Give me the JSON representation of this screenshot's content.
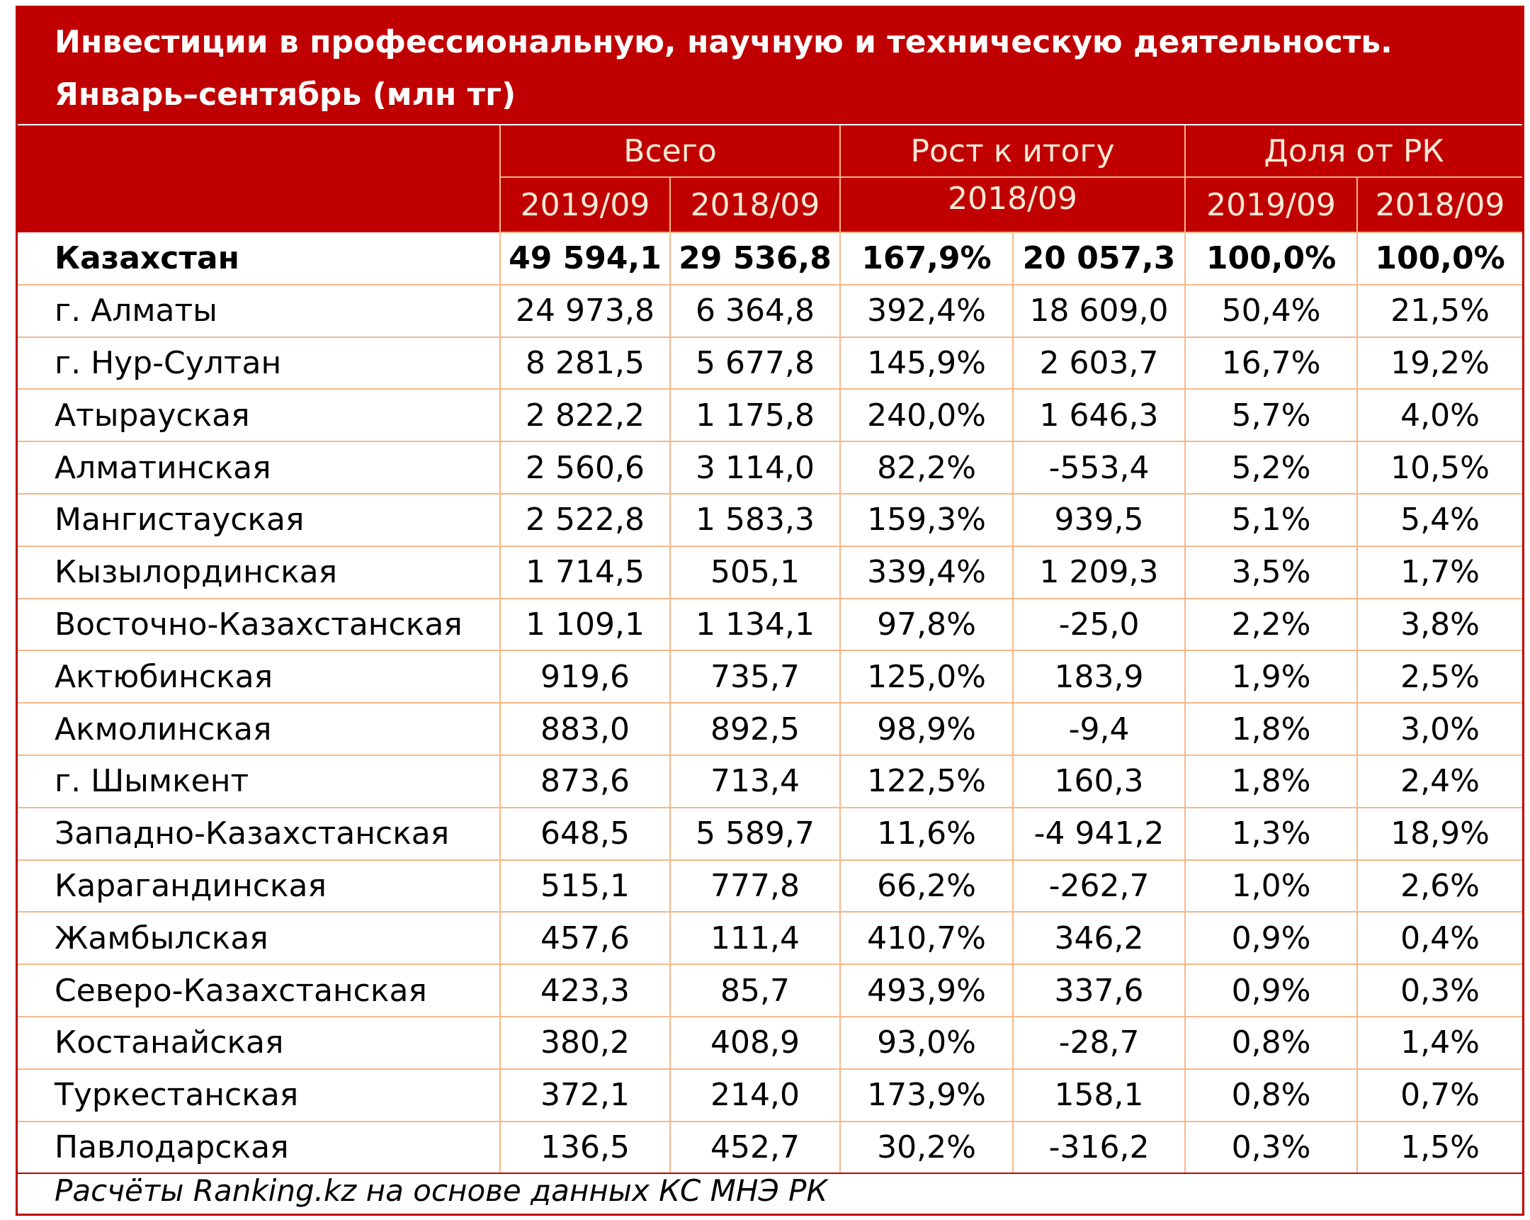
{
  "title": {
    "line1": "Инвестиции в профессиональную, научную и техническую деятельность.",
    "line2": "Январь–сентябрь (млн тг)"
  },
  "header": {
    "group_total": "Всего",
    "group_growth": "Рост к итогу",
    "group_share": "Доля от РК",
    "sub_total_2019": "2019/09",
    "sub_total_2018": "2018/09",
    "sub_growth": "2018/09",
    "sub_share_2019": "2019/09",
    "sub_share_2018": "2018/09"
  },
  "rows": [
    {
      "name": "Казахстан",
      "v2019": "49 594,1",
      "v2018": "29 536,8",
      "growth_pct": "167,9%",
      "growth_abs": "20 057,3",
      "share2019": "100,0%",
      "share2018": "100,0%"
    },
    {
      "name": "г. Алматы",
      "v2019": "24 973,8",
      "v2018": "6 364,8",
      "growth_pct": "392,4%",
      "growth_abs": "18 609,0",
      "share2019": "50,4%",
      "share2018": "21,5%"
    },
    {
      "name": "г. Нур-Султан",
      "v2019": "8 281,5",
      "v2018": "5 677,8",
      "growth_pct": "145,9%",
      "growth_abs": "2 603,7",
      "share2019": "16,7%",
      "share2018": "19,2%"
    },
    {
      "name": "Атырауская",
      "v2019": "2 822,2",
      "v2018": "1 175,8",
      "growth_pct": "240,0%",
      "growth_abs": "1 646,3",
      "share2019": "5,7%",
      "share2018": "4,0%"
    },
    {
      "name": "Алматинская",
      "v2019": "2 560,6",
      "v2018": "3 114,0",
      "growth_pct": "82,2%",
      "growth_abs": "-553,4",
      "share2019": "5,2%",
      "share2018": "10,5%"
    },
    {
      "name": "Мангистауская",
      "v2019": "2 522,8",
      "v2018": "1 583,3",
      "growth_pct": "159,3%",
      "growth_abs": "939,5",
      "share2019": "5,1%",
      "share2018": "5,4%"
    },
    {
      "name": "Кызылординская",
      "v2019": "1 714,5",
      "v2018": "505,1",
      "growth_pct": "339,4%",
      "growth_abs": "1 209,3",
      "share2019": "3,5%",
      "share2018": "1,7%"
    },
    {
      "name": "Восточно-Казахстанская",
      "v2019": "1 109,1",
      "v2018": "1 134,1",
      "growth_pct": "97,8%",
      "growth_abs": "-25,0",
      "share2019": "2,2%",
      "share2018": "3,8%"
    },
    {
      "name": "Актюбинская",
      "v2019": "919,6",
      "v2018": "735,7",
      "growth_pct": "125,0%",
      "growth_abs": "183,9",
      "share2019": "1,9%",
      "share2018": "2,5%"
    },
    {
      "name": "Акмолинская",
      "v2019": "883,0",
      "v2018": "892,5",
      "growth_pct": "98,9%",
      "growth_abs": "-9,4",
      "share2019": "1,8%",
      "share2018": "3,0%"
    },
    {
      "name": "г. Шымкент",
      "v2019": "873,6",
      "v2018": "713,4",
      "growth_pct": "122,5%",
      "growth_abs": "160,3",
      "share2019": "1,8%",
      "share2018": "2,4%"
    },
    {
      "name": "Западно-Казахстанская",
      "v2019": "648,5",
      "v2018": "5 589,7",
      "growth_pct": "11,6%",
      "growth_abs": "-4 941,2",
      "share2019": "1,3%",
      "share2018": "18,9%"
    },
    {
      "name": "Карагандинская",
      "v2019": "515,1",
      "v2018": "777,8",
      "growth_pct": "66,2%",
      "growth_abs": "-262,7",
      "share2019": "1,0%",
      "share2018": "2,6%"
    },
    {
      "name": "Жамбылская",
      "v2019": "457,6",
      "v2018": "111,4",
      "growth_pct": "410,7%",
      "growth_abs": "346,2",
      "share2019": "0,9%",
      "share2018": "0,4%"
    },
    {
      "name": "Северо-Казахстанская",
      "v2019": "423,3",
      "v2018": "85,7",
      "growth_pct": "493,9%",
      "growth_abs": "337,6",
      "share2019": "0,9%",
      "share2018": "0,3%"
    },
    {
      "name": "Костанайская",
      "v2019": "380,2",
      "v2018": "408,9",
      "growth_pct": "93,0%",
      "growth_abs": "-28,7",
      "share2019": "0,8%",
      "share2018": "1,4%"
    },
    {
      "name": "Туркестанская",
      "v2019": "372,1",
      "v2018": "214,0",
      "growth_pct": "173,9%",
      "growth_abs": "158,1",
      "share2019": "0,8%",
      "share2018": "0,7%"
    },
    {
      "name": "Павлодарская",
      "v2019": "136,5",
      "v2018": "452,7",
      "growth_pct": "30,2%",
      "growth_abs": "-316,2",
      "share2019": "0,3%",
      "share2018": "1,5%"
    }
  ],
  "footer": "Расчёты Ranking.kz на основе данных КС МНЭ РК",
  "colors": {
    "header_bg": "#c00000",
    "grid_line": "#f5b78a",
    "header_text": "#ffe9d6"
  }
}
